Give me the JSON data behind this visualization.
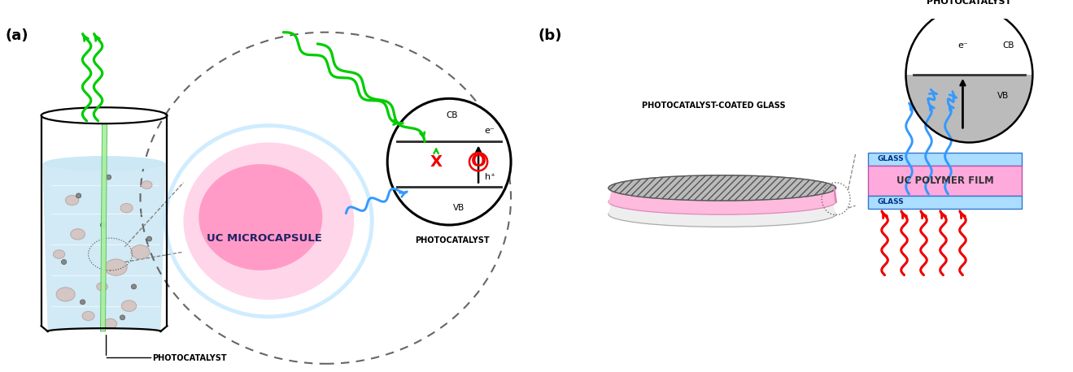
{
  "fig_width": 13.19,
  "fig_height": 4.58,
  "bg_color": "#ffffff",
  "green": "#00cc00",
  "blue": "#3399ff",
  "red": "#ee0000",
  "light_blue_water": "#c8e8f8",
  "pink_capsule": "#ffaacc",
  "pink_capsule2": "#ff88bb",
  "aura_blue": "#aaddff",
  "glass_blue": "#aaddff",
  "polymer_pink": "#ffaadd",
  "gray_vb": "#bbbbbb",
  "beaker_fill": "#cce8f4",
  "bubble_fill": "#d4b8b0",
  "bubble_edge": "#b09898",
  "dot_gray": "#888888",
  "hatch_gray": "#999999",
  "label_a": "(a)",
  "label_b": "(b)",
  "text_photocatalyst": "PHOTOCATALYST",
  "text_uc_microcapsule": "UC MICROCAPSULE",
  "text_pc_coated_glass": "PHOTOCATALYST-COATED GLASS",
  "text_glass": "GLASS",
  "text_uc_polymer": "UC POLYMER FILM",
  "text_cb": "CB",
  "text_vb": "VB",
  "text_eminus": "e⁻",
  "text_hplus": "h⁺"
}
